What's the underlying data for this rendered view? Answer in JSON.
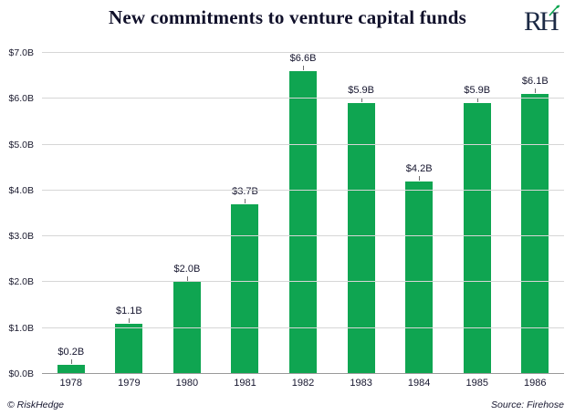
{
  "header": {
    "title": "New commitments to venture capital funds",
    "logo_text": "RH"
  },
  "footer": {
    "left": "© RiskHedge",
    "right": "Source: Firehose"
  },
  "colors": {
    "bar_green": "#0fa551",
    "logo_leaf_green": "#0fa551",
    "text_navy": "#15152e"
  },
  "chart_data": {
    "type": "bar",
    "title": "New commitments to venture capital funds",
    "categories": [
      "1978",
      "1979",
      "1980",
      "1981",
      "1982",
      "1983",
      "1984",
      "1985",
      "1986"
    ],
    "values": [
      0.2,
      1.1,
      2.0,
      3.7,
      6.6,
      5.9,
      4.2,
      5.9,
      6.1
    ],
    "bar_labels": [
      "$0.2B",
      "$1.1B",
      "$2.0B",
      "$3.7B",
      "$6.6B",
      "$5.9B",
      "$4.2B",
      "$5.9B",
      "$6.1B"
    ],
    "xlabel": "",
    "ylabel": "",
    "ylim": [
      0,
      7
    ],
    "yticks": [
      0,
      1,
      2,
      3,
      4,
      5,
      6,
      7
    ],
    "ytick_labels": [
      "$0.0B",
      "$1.0B",
      "$2.0B",
      "$3.0B",
      "$4.0B",
      "$5.0B",
      "$6.0B",
      "$7.0B"
    ],
    "grid": true,
    "legend": "none",
    "bar_color": "#0fa551"
  }
}
